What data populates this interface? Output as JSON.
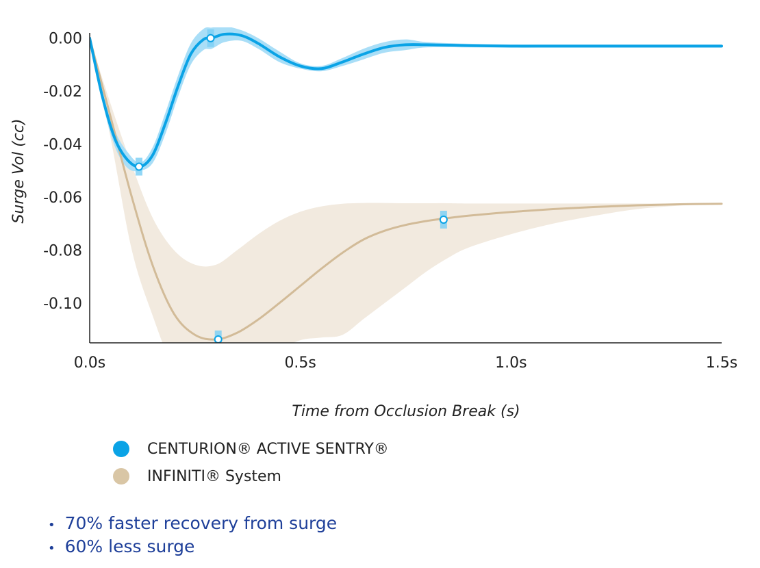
{
  "chart_data": {
    "type": "line",
    "title": "",
    "xlabel": "Time from Occlusion Break (s)",
    "ylabel": "Surge Vol (cc)",
    "xlim": [
      0,
      1.5
    ],
    "ylim": [
      -0.115,
      0.002
    ],
    "x_ticks": [
      {
        "value": 0.0,
        "label": "0.0s"
      },
      {
        "value": 0.5,
        "label": "0.5s"
      },
      {
        "value": 1.0,
        "label": "1.0s"
      },
      {
        "value": 1.5,
        "label": "1.5s"
      }
    ],
    "y_ticks": [
      {
        "value": 0.0,
        "label": "0.00"
      },
      {
        "value": -0.02,
        "label": "-0.02"
      },
      {
        "value": -0.04,
        "label": "-0.04"
      },
      {
        "value": -0.06,
        "label": "-0.06"
      },
      {
        "value": -0.08,
        "label": "-0.08"
      },
      {
        "value": -0.1,
        "label": "-0.10"
      }
    ],
    "grid": false,
    "legend_position": "bottom-left",
    "series": [
      {
        "name": "CENTURION® ACTIVE SENTRY®",
        "color": "#0aa3e6",
        "band_color": "#a9def7",
        "x": [
          0.0,
          0.03,
          0.06,
          0.09,
          0.12,
          0.15,
          0.18,
          0.21,
          0.24,
          0.27,
          0.29,
          0.32,
          0.36,
          0.4,
          0.45,
          0.5,
          0.55,
          0.6,
          0.65,
          0.7,
          0.75,
          0.8,
          0.9,
          1.0,
          1.1,
          1.2,
          1.3,
          1.4,
          1.5
        ],
        "y": [
          0.0,
          -0.022,
          -0.038,
          -0.046,
          -0.0485,
          -0.044,
          -0.032,
          -0.018,
          -0.006,
          -0.0005,
          0.0,
          0.0015,
          0.001,
          -0.002,
          -0.007,
          -0.0105,
          -0.0115,
          -0.009,
          -0.006,
          -0.0035,
          -0.0025,
          -0.0025,
          -0.0028,
          -0.003,
          -0.003,
          -0.003,
          -0.003,
          -0.003,
          -0.003
        ],
        "band_half_width": [
          0.0,
          0.002,
          0.003,
          0.003,
          0.0015,
          0.003,
          0.004,
          0.004,
          0.004,
          0.004,
          0.004,
          0.003,
          0.002,
          0.002,
          0.002,
          0.001,
          0.001,
          0.0015,
          0.002,
          0.002,
          0.002,
          0.001,
          0.0007,
          0.0006,
          0.0006,
          0.0006,
          0.0006,
          0.0006,
          0.0006
        ],
        "markers": [
          {
            "x": 0.117,
            "y": -0.0485
          },
          {
            "x": 0.287,
            "y": 0.0
          }
        ]
      },
      {
        "name": "INFINITI® System",
        "color": "#d2bb98",
        "band_color": "#f2eadf",
        "x": [
          0.0,
          0.05,
          0.1,
          0.15,
          0.2,
          0.25,
          0.3,
          0.35,
          0.4,
          0.45,
          0.5,
          0.55,
          0.6,
          0.65,
          0.7,
          0.75,
          0.8,
          0.85,
          0.9,
          1.0,
          1.1,
          1.2,
          1.3,
          1.4,
          1.5
        ],
        "y": [
          0.0,
          -0.03,
          -0.06,
          -0.086,
          -0.104,
          -0.112,
          -0.1137,
          -0.1112,
          -0.1062,
          -0.1,
          -0.0935,
          -0.087,
          -0.081,
          -0.076,
          -0.0727,
          -0.0705,
          -0.069,
          -0.0679,
          -0.067,
          -0.0656,
          -0.0645,
          -0.0637,
          -0.0631,
          -0.0627,
          -0.0625
        ],
        "band_upper": [
          0.0,
          -0.025,
          -0.048,
          -0.068,
          -0.08,
          -0.0855,
          -0.0855,
          -0.08,
          -0.074,
          -0.069,
          -0.0655,
          -0.0635,
          -0.0625,
          -0.0622,
          -0.0622,
          -0.0623,
          -0.0623,
          -0.0623,
          -0.0624,
          -0.0624,
          -0.0624,
          -0.0624,
          -0.0624,
          -0.0624,
          -0.0624
        ],
        "band_lower": [
          0.0,
          -0.038,
          -0.08,
          -0.105,
          -0.125,
          -0.135,
          -0.135,
          -0.13,
          -0.125,
          -0.118,
          -0.114,
          -0.113,
          -0.112,
          -0.106,
          -0.1,
          -0.094,
          -0.088,
          -0.083,
          -0.079,
          -0.074,
          -0.07,
          -0.067,
          -0.0645,
          -0.0632,
          -0.0625
        ],
        "markers": [
          {
            "x": 0.305,
            "y": -0.1137
          },
          {
            "x": 0.84,
            "y": -0.0685
          }
        ]
      }
    ]
  },
  "legend": [
    {
      "label": "CENTURION® ACTIVE SENTRY®",
      "color": "#0aa3e6"
    },
    {
      "label": "INFINITI® System",
      "color": "#d9c6a5"
    }
  ],
  "bullets": [
    "70% faster recovery from surge",
    "60% less surge"
  ]
}
